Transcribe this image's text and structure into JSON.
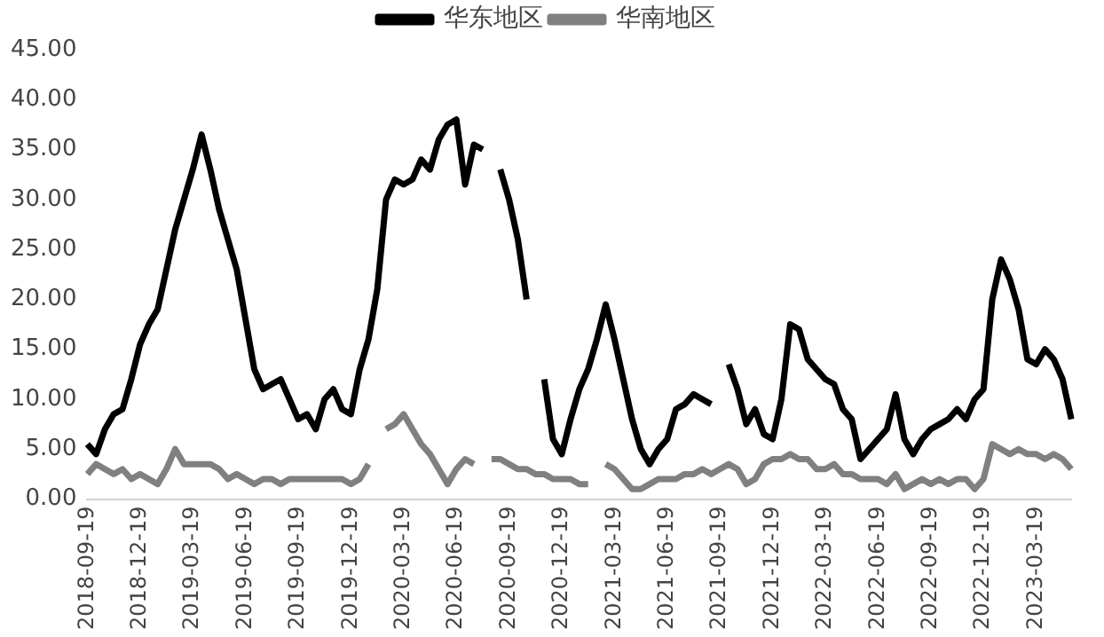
{
  "chart_data": {
    "type": "line",
    "categories": [
      "2018-09-19",
      null,
      null,
      null,
      null,
      null,
      "2018-12-19",
      null,
      null,
      null,
      null,
      null,
      "2019-03-19",
      null,
      null,
      null,
      null,
      null,
      "2019-06-19",
      null,
      null,
      null,
      null,
      null,
      "2019-09-19",
      null,
      null,
      null,
      null,
      null,
      "2019-12-19",
      null,
      null,
      null,
      null,
      null,
      "2020-03-19",
      null,
      null,
      null,
      null,
      null,
      "2020-06-19",
      null,
      null,
      null,
      null,
      null,
      "2020-09-19",
      null,
      null,
      null,
      null,
      null,
      "2020-12-19",
      null,
      null,
      null,
      null,
      null,
      "2021-03-19",
      null,
      null,
      null,
      null,
      null,
      "2021-06-19",
      null,
      null,
      null,
      null,
      null,
      "2021-09-19",
      null,
      null,
      null,
      null,
      null,
      "2021-12-19",
      null,
      null,
      null,
      null,
      null,
      "2022-03-19",
      null,
      null,
      null,
      null,
      null,
      "2022-06-19",
      null,
      null,
      null,
      null,
      null,
      "2022-09-19",
      null,
      null,
      null,
      null,
      null,
      "2022-12-19",
      null,
      null,
      null,
      null,
      null,
      "2023-03-19",
      null,
      null,
      null,
      null
    ],
    "series": [
      {
        "name": "华东地区",
        "color": "#000000",
        "values": [
          5.5,
          4.5,
          7,
          8.5,
          9,
          12,
          15.5,
          17.5,
          19,
          23,
          27,
          30,
          33,
          36.5,
          33,
          29,
          26,
          23,
          18,
          13,
          11,
          11.5,
          12,
          10,
          8,
          8.5,
          7,
          10,
          11,
          9,
          8.5,
          13,
          16,
          21,
          30,
          32,
          31.5,
          32,
          34,
          33,
          36,
          37.5,
          38,
          31.5,
          35.5,
          35,
          null,
          33,
          30,
          26,
          20,
          null,
          12,
          6,
          4.5,
          8,
          11,
          13,
          16,
          19.5,
          16,
          12,
          8,
          5,
          3.5,
          5,
          6,
          9,
          9.5,
          10.5,
          10,
          9.5,
          null,
          13.5,
          11,
          7.5,
          9,
          6.5,
          6,
          10,
          17.5,
          17,
          14,
          13,
          12,
          11.5,
          9,
          8,
          4,
          5,
          6,
          7,
          10.5,
          6,
          4.5,
          6,
          7,
          7.5,
          8,
          9,
          8,
          10,
          11,
          20,
          24,
          22,
          19,
          14,
          13.5,
          15,
          14,
          12,
          8
        ]
      },
      {
        "name": "华南地区",
        "color": "#808080",
        "values": [
          2.5,
          3.5,
          3,
          2.5,
          3,
          2,
          2.5,
          2,
          1.5,
          3,
          5,
          3.5,
          3.5,
          3.5,
          3.5,
          3,
          2,
          2.5,
          2,
          1.5,
          2,
          2,
          1.5,
          2,
          2,
          2,
          2,
          2,
          2,
          2,
          1.5,
          2,
          3.5,
          null,
          7,
          7.5,
          8.5,
          7,
          5.5,
          4.5,
          3,
          1.5,
          3,
          4,
          3.5,
          null,
          4,
          4,
          3.5,
          3,
          3,
          2.5,
          2.5,
          2,
          2,
          2,
          1.5,
          1.5,
          null,
          3.5,
          3,
          2,
          1,
          1,
          1.5,
          2,
          2,
          2,
          2.5,
          2.5,
          3,
          2.5,
          3,
          3.5,
          3,
          1.5,
          2,
          3.5,
          4,
          4,
          4.5,
          4,
          4,
          3,
          3,
          3.5,
          2.5,
          2.5,
          2,
          2,
          2,
          1.5,
          2.5,
          1,
          1.5,
          2,
          1.5,
          2,
          1.5,
          2,
          2,
          1,
          2,
          5.5,
          5,
          4.5,
          5,
          4.5,
          4.5,
          4,
          4.5,
          4,
          3
        ]
      }
    ],
    "ylim": [
      0,
      45
    ],
    "yticks": [
      {
        "value": 0,
        "label": "0.00"
      },
      {
        "value": 5,
        "label": "5.00"
      },
      {
        "value": 10,
        "label": "10.00"
      },
      {
        "value": 15,
        "label": "15.00"
      },
      {
        "value": 20,
        "label": "20.00"
      },
      {
        "value": 25,
        "label": "25.00"
      },
      {
        "value": 30,
        "label": "30.00"
      },
      {
        "value": 35,
        "label": "35.00"
      },
      {
        "value": 40,
        "label": "40.00"
      },
      {
        "value": 45,
        "label": "45.00"
      }
    ],
    "grid": false,
    "legend": "top",
    "marker": "none",
    "line_style": "solid"
  }
}
